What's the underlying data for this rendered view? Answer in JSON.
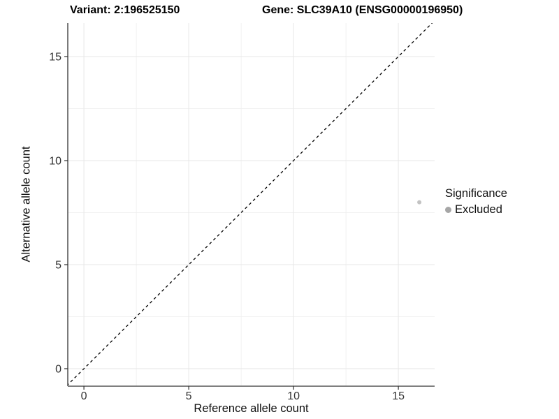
{
  "titles": {
    "variant": "Variant: 2:196525150",
    "gene": "Gene: SLC39A10 (ENSG00000196950)"
  },
  "legend": {
    "title": "Significance",
    "items": [
      {
        "label": "Excluded",
        "color": "#a6a6a6"
      }
    ]
  },
  "colors": {
    "background": "#ffffff",
    "grid_major": "#e9e9e9",
    "grid_minor": "#efefef",
    "axis_line": "#333333",
    "tick_label": "#333333",
    "reference_line": "#000000",
    "point": "#c3c3c3"
  },
  "chart_data": {
    "type": "scatter",
    "title": "Variant: 2:196525150 | Gene: SLC39A10 (ENSG00000196950)",
    "xlabel": "Reference allele count",
    "ylabel": "Alternative allele count",
    "xlim": [
      -0.77,
      16.73
    ],
    "ylim": [
      -0.84,
      16.61
    ],
    "x_ticks": [
      0,
      5,
      10,
      15
    ],
    "y_ticks": [
      0,
      5,
      10,
      15
    ],
    "x_minor_ticks": [
      2.5,
      7.5,
      12.5
    ],
    "y_minor_ticks": [
      2.5,
      7.5,
      12.5
    ],
    "grid": true,
    "legend_position": "right",
    "series": [
      {
        "name": "Excluded",
        "color": "#c3c3c3",
        "radius": 3,
        "points": [
          {
            "x": 16,
            "y": 8
          }
        ]
      }
    ],
    "reference_line": {
      "slope": 1,
      "intercept": 0,
      "style": "dashed",
      "color": "#000000"
    }
  }
}
